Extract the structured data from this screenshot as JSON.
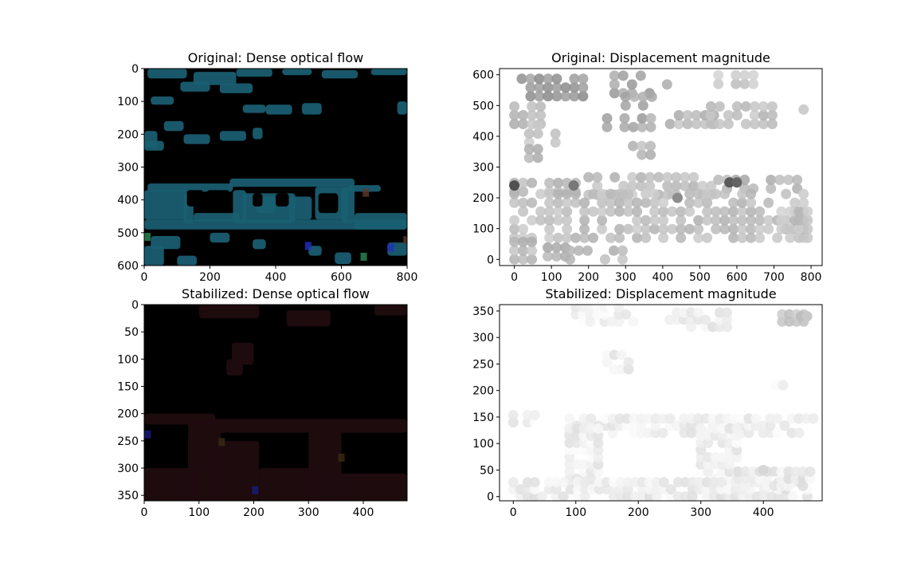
{
  "chart_data": [
    {
      "id": "orig_flow",
      "type": "heatmap",
      "title": "Original: Dense optical flow",
      "xlabel": "",
      "ylabel": "",
      "xlim": [
        0,
        800
      ],
      "ylim": [
        600,
        0
      ],
      "xticks": [
        "0",
        "200",
        "400",
        "600",
        "800"
      ],
      "yticks": [
        "0",
        "100",
        "200",
        "300",
        "400",
        "500",
        "600"
      ],
      "background": "#000000",
      "blob_color": "#1a5f73",
      "accent_colors": [
        "#2a8a55",
        "#2030c0",
        "#5a3a2a"
      ],
      "blobs": [
        {
          "x": 10,
          "y": 0,
          "w": 120,
          "h": 30
        },
        {
          "x": 150,
          "y": 10,
          "w": 130,
          "h": 40
        },
        {
          "x": 280,
          "y": 0,
          "w": 110,
          "h": 25
        },
        {
          "x": 420,
          "y": 0,
          "w": 90,
          "h": 20
        },
        {
          "x": 540,
          "y": 5,
          "w": 110,
          "h": 25
        },
        {
          "x": 690,
          "y": 0,
          "w": 110,
          "h": 20
        },
        {
          "x": 110,
          "y": 40,
          "w": 90,
          "h": 30
        },
        {
          "x": 230,
          "y": 45,
          "w": 100,
          "h": 30
        },
        {
          "x": 20,
          "y": 85,
          "w": 70,
          "h": 25
        },
        {
          "x": 300,
          "y": 110,
          "w": 70,
          "h": 25
        },
        {
          "x": 370,
          "y": 110,
          "w": 80,
          "h": 30
        },
        {
          "x": 480,
          "y": 105,
          "w": 60,
          "h": 35
        },
        {
          "x": 770,
          "y": 100,
          "w": 30,
          "h": 40
        },
        {
          "x": 60,
          "y": 160,
          "w": 60,
          "h": 30
        },
        {
          "x": 0,
          "y": 190,
          "w": 40,
          "h": 50
        },
        {
          "x": 120,
          "y": 200,
          "w": 80,
          "h": 30
        },
        {
          "x": 230,
          "y": 190,
          "w": 80,
          "h": 30
        },
        {
          "x": 330,
          "y": 180,
          "w": 30,
          "h": 35
        },
        {
          "x": 0,
          "y": 220,
          "w": 60,
          "h": 30
        },
        {
          "x": 10,
          "y": 350,
          "w": 260,
          "h": 25
        },
        {
          "x": 260,
          "y": 335,
          "w": 380,
          "h": 25
        },
        {
          "x": 620,
          "y": 355,
          "w": 100,
          "h": 20
        },
        {
          "x": 0,
          "y": 370,
          "w": 130,
          "h": 90
        },
        {
          "x": 120,
          "y": 380,
          "w": 30,
          "h": 90
        },
        {
          "x": 150,
          "y": 440,
          "w": 140,
          "h": 25
        },
        {
          "x": 270,
          "y": 370,
          "w": 40,
          "h": 100
        },
        {
          "x": 300,
          "y": 380,
          "w": 160,
          "h": 90
        },
        {
          "x": 340,
          "y": 390,
          "w": 60,
          "h": 50
        },
        {
          "x": 440,
          "y": 390,
          "w": 70,
          "h": 70
        },
        {
          "x": 520,
          "y": 360,
          "w": 100,
          "h": 100
        },
        {
          "x": 600,
          "y": 360,
          "w": 40,
          "h": 110
        },
        {
          "x": 640,
          "y": 440,
          "w": 160,
          "h": 50
        },
        {
          "x": 0,
          "y": 460,
          "w": 800,
          "h": 30
        },
        {
          "x": 20,
          "y": 510,
          "w": 90,
          "h": 40
        },
        {
          "x": 0,
          "y": 540,
          "w": 60,
          "h": 60
        },
        {
          "x": 100,
          "y": 570,
          "w": 60,
          "h": 30
        },
        {
          "x": 200,
          "y": 500,
          "w": 60,
          "h": 30
        },
        {
          "x": 330,
          "y": 520,
          "w": 40,
          "h": 30
        },
        {
          "x": 500,
          "y": 540,
          "w": 40,
          "h": 30
        },
        {
          "x": 580,
          "y": 560,
          "w": 50,
          "h": 35
        },
        {
          "x": 740,
          "y": 530,
          "w": 60,
          "h": 40
        }
      ],
      "holes": [
        {
          "x": 130,
          "y": 370,
          "w": 50,
          "h": 50
        },
        {
          "x": 190,
          "y": 370,
          "w": 70,
          "h": 60
        },
        {
          "x": 330,
          "y": 380,
          "w": 30,
          "h": 40
        },
        {
          "x": 400,
          "y": 380,
          "w": 40,
          "h": 40
        },
        {
          "x": 530,
          "y": 380,
          "w": 60,
          "h": 60
        },
        {
          "x": 120,
          "y": 470,
          "w": 200,
          "h": 0
        }
      ]
    },
    {
      "id": "orig_mag",
      "type": "scatter",
      "title": "Original: Displacement magnitude",
      "xlabel": "",
      "ylabel": "",
      "xlim": [
        -40,
        830
      ],
      "ylim": [
        -20,
        620
      ],
      "xticks": [
        0,
        100,
        200,
        300,
        400,
        500,
        600,
        700,
        800
      ],
      "yticks": [
        0,
        100,
        200,
        300,
        400,
        500,
        600
      ],
      "point_color": "#b4b4b4",
      "clusters": [
        {
          "x0": 20,
          "x1": 220,
          "y0": 530,
          "y1": 600,
          "g": 150
        },
        {
          "x0": 270,
          "x1": 430,
          "y0": 540,
          "y1": 600,
          "g": 160
        },
        {
          "x0": 300,
          "x1": 390,
          "y0": 500,
          "y1": 530,
          "g": 170
        },
        {
          "x0": 550,
          "x1": 650,
          "y0": 570,
          "y1": 600,
          "g": 200
        },
        {
          "x0": 250,
          "x1": 390,
          "y0": 430,
          "y1": 480,
          "g": 165
        },
        {
          "x0": 420,
          "x1": 560,
          "y0": 440,
          "y1": 480,
          "g": 185
        },
        {
          "x0": 530,
          "x1": 700,
          "y0": 440,
          "y1": 500,
          "g": 190
        },
        {
          "x0": 0,
          "x1": 80,
          "y0": 440,
          "y1": 500,
          "g": 185
        },
        {
          "x0": 40,
          "x1": 130,
          "y0": 380,
          "y1": 440,
          "g": 190
        },
        {
          "x0": 40,
          "x1": 110,
          "y0": 330,
          "y1": 380,
          "g": 180
        },
        {
          "x0": 780,
          "x1": 800,
          "y0": 430,
          "y1": 500,
          "g": 200
        },
        {
          "x0": 320,
          "x1": 380,
          "y0": 340,
          "y1": 390,
          "g": 185
        },
        {
          "x0": 0,
          "x1": 200,
          "y0": 220,
          "y1": 260,
          "g": 185
        },
        {
          "x0": 200,
          "x1": 550,
          "y0": 210,
          "y1": 270,
          "g": 190
        },
        {
          "x0": 550,
          "x1": 780,
          "y0": 230,
          "y1": 260,
          "g": 180
        },
        {
          "x0": 0,
          "x1": 800,
          "y0": 70,
          "y1": 220,
          "g": 190
        },
        {
          "x0": 720,
          "x1": 800,
          "y0": 70,
          "y1": 170,
          "g": 195
        },
        {
          "x0": 0,
          "x1": 60,
          "y0": 0,
          "y1": 60,
          "g": 185
        },
        {
          "x0": 90,
          "x1": 140,
          "y0": 10,
          "y1": 60,
          "g": 180
        },
        {
          "x0": 150,
          "x1": 300,
          "y0": 0,
          "y1": 30,
          "g": 185
        }
      ],
      "dark_points": [
        {
          "x": 0,
          "y": 240,
          "g": 80
        },
        {
          "x": 580,
          "y": 250,
          "g": 90
        },
        {
          "x": 600,
          "y": 250,
          "g": 100
        },
        {
          "x": 160,
          "y": 240,
          "g": 120
        },
        {
          "x": 440,
          "y": 200,
          "g": 140
        }
      ]
    },
    {
      "id": "stab_flow",
      "type": "heatmap",
      "title": "Stabilized: Dense optical flow",
      "xlabel": "",
      "ylabel": "",
      "xlim": [
        0,
        480
      ],
      "ylim": [
        360,
        0
      ],
      "xticks": [
        "0",
        "100",
        "200",
        "300",
        "400"
      ],
      "yticks": [
        "0",
        "50",
        "100",
        "150",
        "200",
        "250",
        "300",
        "350"
      ],
      "background": "#000000",
      "blob_color": "#200c0f",
      "accent_colors": [
        "#1a1a80",
        "#3a2a10"
      ],
      "blobs": [
        {
          "x": 100,
          "y": 0,
          "w": 110,
          "h": 25
        },
        {
          "x": 260,
          "y": 10,
          "w": 80,
          "h": 30
        },
        {
          "x": 420,
          "y": 0,
          "w": 60,
          "h": 20
        },
        {
          "x": 160,
          "y": 70,
          "w": 40,
          "h": 40
        },
        {
          "x": 150,
          "y": 100,
          "w": 30,
          "h": 30
        },
        {
          "x": 0,
          "y": 200,
          "w": 130,
          "h": 20
        },
        {
          "x": 80,
          "y": 210,
          "w": 400,
          "h": 25
        },
        {
          "x": 80,
          "y": 230,
          "w": 60,
          "h": 130
        },
        {
          "x": 130,
          "y": 250,
          "w": 80,
          "h": 110
        },
        {
          "x": 210,
          "y": 300,
          "w": 120,
          "h": 60
        },
        {
          "x": 300,
          "y": 230,
          "w": 60,
          "h": 130
        },
        {
          "x": 350,
          "y": 310,
          "w": 130,
          "h": 50
        },
        {
          "x": 0,
          "y": 300,
          "w": 100,
          "h": 60
        }
      ]
    },
    {
      "id": "stab_mag",
      "type": "scatter",
      "title": "Stabilized: Displacement magnitude",
      "xlabel": "",
      "ylabel": "",
      "xlim": [
        -22,
        494
      ],
      "ylim": [
        -8,
        362
      ],
      "xticks": [
        0,
        100,
        200,
        300,
        400
      ],
      "yticks": [
        0,
        50,
        100,
        150,
        200,
        250,
        300,
        350
      ],
      "point_color": "#f2f2f2",
      "clusters": [
        {
          "x0": 100,
          "x1": 200,
          "y0": 330,
          "y1": 360,
          "g": 243
        },
        {
          "x0": 250,
          "x1": 350,
          "y0": 320,
          "y1": 360,
          "g": 235
        },
        {
          "x0": 430,
          "x1": 470,
          "y0": 330,
          "y1": 350,
          "g": 200
        },
        {
          "x0": 150,
          "x1": 190,
          "y0": 240,
          "y1": 280,
          "g": 235
        },
        {
          "x0": 420,
          "x1": 440,
          "y0": 210,
          "y1": 230,
          "g": 240
        },
        {
          "x0": 0,
          "x1": 40,
          "y0": 140,
          "y1": 160,
          "g": 240
        },
        {
          "x0": 90,
          "x1": 480,
          "y0": 120,
          "y1": 150,
          "g": 238
        },
        {
          "x0": 90,
          "x1": 140,
          "y0": 20,
          "y1": 130,
          "g": 238
        },
        {
          "x0": 300,
          "x1": 360,
          "y0": 20,
          "y1": 130,
          "g": 238
        },
        {
          "x0": 0,
          "x1": 480,
          "y0": 0,
          "y1": 40,
          "g": 235
        },
        {
          "x0": 360,
          "x1": 480,
          "y0": 20,
          "y1": 60,
          "g": 233
        }
      ],
      "dark_points": [
        {
          "x": 460,
          "y": 340,
          "g": 190
        },
        {
          "x": 470,
          "y": 340,
          "g": 200
        },
        {
          "x": 400,
          "y": 50,
          "g": 215
        }
      ]
    }
  ]
}
